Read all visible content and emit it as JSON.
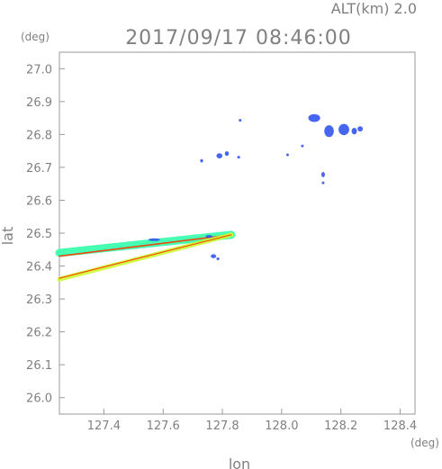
{
  "header": {
    "alt_label": "ALT(km)  2.0",
    "timestamp": "2017/09/17 08:46:00"
  },
  "chart_data": {
    "type": "scatter",
    "title": "2017/09/17 08:46:00",
    "xlabel": "lon",
    "ylabel": "lat",
    "x_unit": "(deg)",
    "y_unit": "(deg)",
    "xlim": [
      127.25,
      128.45
    ],
    "ylim": [
      25.95,
      27.05
    ],
    "x_ticks": [
      127.4,
      127.6,
      127.8,
      128.0,
      128.2,
      128.4
    ],
    "x_tick_labels": [
      "127.4",
      "127.6",
      "127.8",
      "128.0",
      "128.2",
      "128.4"
    ],
    "y_ticks": [
      26.0,
      26.1,
      26.2,
      26.3,
      26.4,
      26.5,
      26.6,
      26.7,
      26.8,
      26.9,
      27.0
    ],
    "y_tick_labels": [
      "26.0",
      "26.1",
      "26.2",
      "26.3",
      "26.4",
      "26.5",
      "26.6",
      "26.7",
      "26.8",
      "26.9",
      "27.0"
    ],
    "grid": false,
    "colors": {
      "echo_blue": "#3355ee",
      "echo_red": "#ff3300",
      "echo_green": "#33ff66",
      "echo_cyan": "#33ccaa",
      "echo_yellow": "#ccff33"
    },
    "streaks": [
      {
        "from": [
          127.25,
          26.44
        ],
        "to": [
          127.83,
          26.495
        ],
        "color": "#33ffaa",
        "width": 9
      },
      {
        "from": [
          127.25,
          26.43
        ],
        "to": [
          127.83,
          26.495
        ],
        "color": "#ff3300",
        "width": 1.6
      },
      {
        "from": [
          127.25,
          26.36
        ],
        "to": [
          127.83,
          26.495
        ],
        "color": "#ccff33",
        "width": 5
      },
      {
        "from": [
          127.25,
          26.363
        ],
        "to": [
          127.83,
          26.495
        ],
        "color": "#ff3300",
        "width": 1.2
      }
    ],
    "echoes": [
      {
        "lon": 128.11,
        "lat": 26.85,
        "rx": 0.02,
        "ry": 0.012
      },
      {
        "lon": 128.16,
        "lat": 26.81,
        "rx": 0.016,
        "ry": 0.018
      },
      {
        "lon": 128.21,
        "lat": 26.815,
        "rx": 0.018,
        "ry": 0.017
      },
      {
        "lon": 128.245,
        "lat": 26.81,
        "rx": 0.009,
        "ry": 0.01
      },
      {
        "lon": 128.265,
        "lat": 26.817,
        "rx": 0.009,
        "ry": 0.008
      },
      {
        "lon": 128.07,
        "lat": 26.765,
        "rx": 0.004,
        "ry": 0.004
      },
      {
        "lon": 128.14,
        "lat": 26.678,
        "rx": 0.006,
        "ry": 0.008
      },
      {
        "lon": 128.14,
        "lat": 26.653,
        "rx": 0.004,
        "ry": 0.004
      },
      {
        "lon": 128.02,
        "lat": 26.738,
        "rx": 0.004,
        "ry": 0.003
      },
      {
        "lon": 127.86,
        "lat": 26.843,
        "rx": 0.003,
        "ry": 0.004
      },
      {
        "lon": 127.79,
        "lat": 26.735,
        "rx": 0.01,
        "ry": 0.008
      },
      {
        "lon": 127.815,
        "lat": 26.742,
        "rx": 0.007,
        "ry": 0.007
      },
      {
        "lon": 127.855,
        "lat": 26.731,
        "rx": 0.005,
        "ry": 0.004
      },
      {
        "lon": 127.73,
        "lat": 26.72,
        "rx": 0.005,
        "ry": 0.005
      },
      {
        "lon": 127.77,
        "lat": 26.43,
        "rx": 0.009,
        "ry": 0.006
      },
      {
        "lon": 127.785,
        "lat": 26.422,
        "rx": 0.005,
        "ry": 0.004
      },
      {
        "lon": 127.57,
        "lat": 26.48,
        "rx": 0.02,
        "ry": 0.004
      },
      {
        "lon": 127.755,
        "lat": 26.49,
        "rx": 0.012,
        "ry": 0.004
      }
    ]
  }
}
